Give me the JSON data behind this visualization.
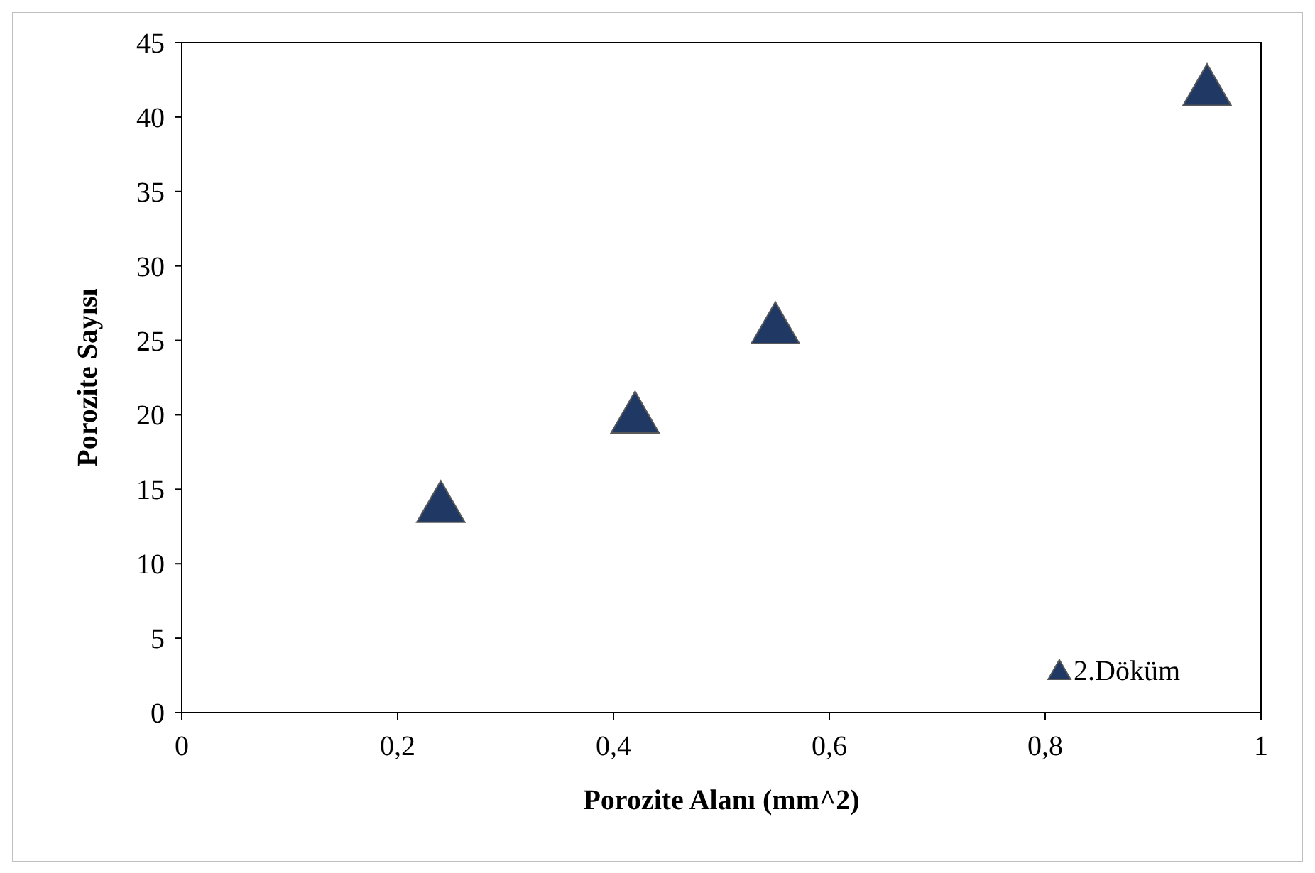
{
  "chart_data": {
    "type": "scatter",
    "xlabel": "Porozite Alanı (mm^2)",
    "ylabel": "Porozite Sayısı",
    "x": [
      0.24,
      0.42,
      0.55,
      0.95
    ],
    "series": [
      {
        "name": "2.Döküm",
        "color": "#1f3864",
        "values": [
          14,
          20,
          26,
          42
        ]
      }
    ],
    "xlim": [
      0,
      1
    ],
    "xticks": [
      0,
      {
        "value": 0.2,
        "label": "0,2"
      },
      {
        "value": 0.4,
        "label": "0,4"
      },
      {
        "value": 0.6,
        "label": "0,6"
      },
      {
        "value": 0.8,
        "label": "0,8"
      },
      1
    ],
    "ylim": [
      0,
      45
    ],
    "yticks": [
      0,
      5,
      10,
      15,
      20,
      25,
      30,
      35,
      40,
      45
    ],
    "grid": false,
    "legend": "bottom right",
    "marker": "triangle"
  }
}
